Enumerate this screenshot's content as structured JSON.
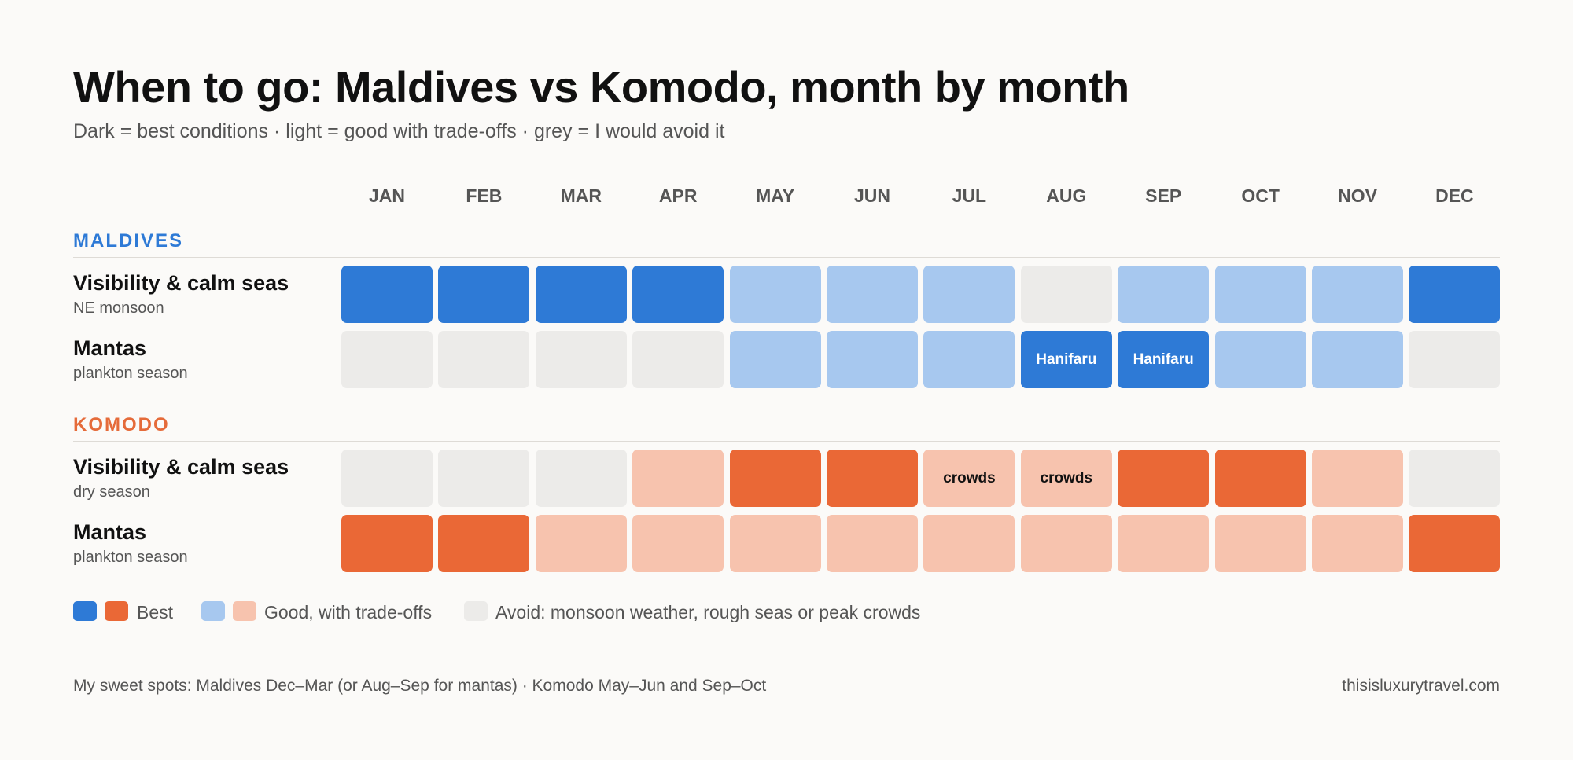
{
  "title": "When to go: Maldives vs Komodo, month by month",
  "subtitle": "Dark = best conditions · light = good with trade-offs · grey = I would avoid it",
  "colors": {
    "maldives_best": "#2e7ad6",
    "maldives_good": "#a7c8ef",
    "komodo_best": "#ea6836",
    "komodo_good": "#f7c3ae",
    "avoid": "#ecebe9",
    "maldives_heading": "#2e7ad6",
    "komodo_heading": "#e56b3a"
  },
  "chart_data": {
    "type": "heatmap",
    "title": "When to go: Maldives vs Komodo, month by month",
    "months": [
      "JAN",
      "FEB",
      "MAR",
      "APR",
      "MAY",
      "JUN",
      "JUL",
      "AUG",
      "SEP",
      "OCT",
      "NOV",
      "DEC"
    ],
    "scale": {
      "best": 2,
      "good": 1,
      "avoid": 0
    },
    "sections": [
      {
        "name": "MALDIVES",
        "rows": [
          {
            "label": "Visibility & calm seas",
            "sublabel": "NE monsoon",
            "values": [
              2,
              2,
              2,
              2,
              1,
              1,
              1,
              0,
              1,
              1,
              1,
              2
            ],
            "notes": [
              "",
              "",
              "",
              "",
              "",
              "",
              "",
              "",
              "",
              "",
              "",
              ""
            ]
          },
          {
            "label": "Mantas",
            "sublabel": "plankton season",
            "values": [
              0,
              0,
              0,
              0,
              1,
              1,
              1,
              2,
              2,
              1,
              1,
              0
            ],
            "notes": [
              "",
              "",
              "",
              "",
              "",
              "",
              "",
              "Hanifaru",
              "Hanifaru",
              "",
              "",
              ""
            ]
          }
        ]
      },
      {
        "name": "KOMODO",
        "rows": [
          {
            "label": "Visibility & calm seas",
            "sublabel": "dry season",
            "values": [
              0,
              0,
              0,
              1,
              2,
              2,
              1,
              1,
              2,
              2,
              1,
              0
            ],
            "notes": [
              "",
              "",
              "",
              "",
              "",
              "",
              "crowds",
              "crowds",
              "",
              "",
              "",
              ""
            ]
          },
          {
            "label": "Mantas",
            "sublabel": "plankton season",
            "values": [
              2,
              2,
              1,
              1,
              1,
              1,
              1,
              1,
              1,
              1,
              1,
              2
            ],
            "notes": [
              "",
              "",
              "",
              "",
              "",
              "",
              "",
              "",
              "",
              "",
              "",
              ""
            ]
          }
        ]
      }
    ],
    "legend": {
      "best": "Best",
      "good": "Good, with trade-offs",
      "avoid": "Avoid: monsoon weather, rough seas or peak crowds"
    }
  },
  "footer": {
    "note": "My sweet spots: Maldives Dec–Mar (or Aug–Sep for mantas) · Komodo May–Jun and Sep–Oct",
    "source": "thisisluxurytravel.com"
  }
}
